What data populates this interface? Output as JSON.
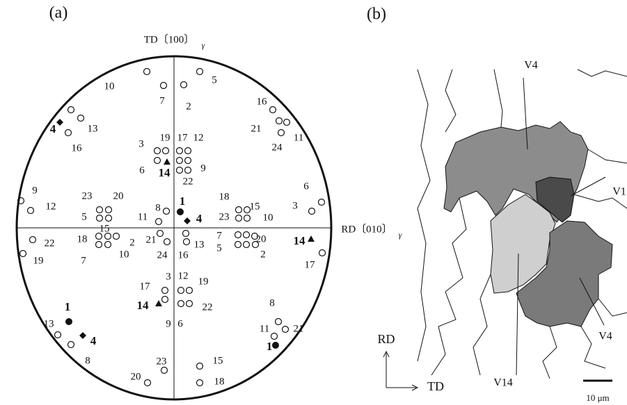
{
  "panel_a": {
    "label": "(a)",
    "td_axis": "TD〔100〕",
    "td_subscript": "γ",
    "rd_axis": "RD〔010〕",
    "rd_subscript": "γ",
    "variant_labels": [
      "10",
      "7",
      "2",
      "5",
      "4",
      "13",
      "16",
      "16",
      "21",
      "24",
      "11",
      "3",
      "19",
      "17",
      "12",
      "6",
      "14",
      "9",
      "22",
      "9",
      "12",
      "23",
      "20",
      "5",
      "18",
      "23",
      "15",
      "10",
      "6",
      "3",
      "8",
      "11",
      "1",
      "4",
      "18",
      "15",
      "2",
      "10",
      "7",
      "22",
      "19",
      "21",
      "13",
      "24",
      "16",
      "7",
      "5",
      "20",
      "2",
      "14",
      "17",
      "3",
      "12",
      "19",
      "17",
      "14",
      "22",
      "9",
      "6",
      "1",
      "13",
      "4",
      "8",
      "8",
      "11",
      "21",
      "1",
      "23",
      "15",
      "20",
      "18"
    ]
  },
  "panel_b": {
    "label": "(b)",
    "grain_labels": [
      "V4",
      "V1",
      "V14",
      "V4"
    ],
    "rd_arrow": "RD",
    "td_arrow": "TD",
    "scale_bar": "10 μm"
  }
}
